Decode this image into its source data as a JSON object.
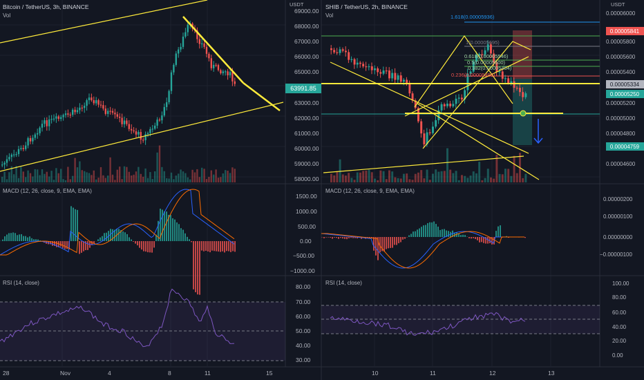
{
  "left_chart": {
    "title": "Bitcoin / TetherUS, 3h, BINANCE",
    "vol_label": "Vol",
    "currency": "USDT",
    "price_ticks": [
      "69000.00",
      "68000.00",
      "67000.00",
      "66000.00",
      "65000.00",
      "64000.00",
      "63000.00",
      "62000.00",
      "61000.00",
      "60000.00",
      "59000.00",
      "58000.00"
    ],
    "last_price": "63991.85",
    "macd_label": "MACD (12, 26, close, 9, EMA, EMA)",
    "macd_ticks": [
      "1500.00",
      "1000.00",
      "500.00",
      "0.00",
      "−1000.00",
      "−500.00"
    ],
    "rsi_label": "RSI (14, close)",
    "rsi_ticks": [
      "80.00",
      "70.00",
      "60.00",
      "50.00",
      "40.00",
      "30.00"
    ],
    "time_ticks": [
      "28",
      "Nov",
      "4",
      "8",
      "11",
      "15"
    ]
  },
  "right_chart": {
    "title": "SHIB / TetherUS, 2h, BINANCE",
    "vol_label": "Vol",
    "currency": "USDT",
    "price_ticks": [
      "0.00006000",
      "0.00005800",
      "0.00005600",
      "0.00005400",
      "0.00005200",
      "0.00005000",
      "0.00004800",
      "0.00004600"
    ],
    "price_badges": {
      "red": "0.00005841",
      "grey": "0.00005334",
      "green_top": "0.00005250",
      "green_bottom": "0.00004759"
    },
    "fib_labels": [
      "1.618(0.00005936)",
      "1(0.00005695)",
      "0.618(0.00005546)",
      "0.5(0.00005500)",
      "0.382(0.00005454)",
      "0.236(0.00005396)"
    ],
    "macd_label": "MACD (12, 26, close, 9, EMA, EMA)",
    "macd_ticks": [
      "0.00000200",
      "0.00000100",
      "0.00000000",
      "−0.00000100"
    ],
    "rsi_label": "RSI (14, close)",
    "rsi_ticks": [
      "100.00",
      "80.00",
      "60.00",
      "40.00",
      "20.00",
      "0.00"
    ],
    "time_ticks": [
      "10",
      "11",
      "12",
      "13"
    ]
  },
  "colors": {
    "bg": "#131722",
    "up": "#26a69a",
    "down": "#ef5350",
    "trend": "#ffeb3b",
    "macd": "#2962ff",
    "signal": "#ff6d00",
    "rsi": "#7e57c2",
    "grid": "#1e222d",
    "text": "#b2b5be"
  }
}
